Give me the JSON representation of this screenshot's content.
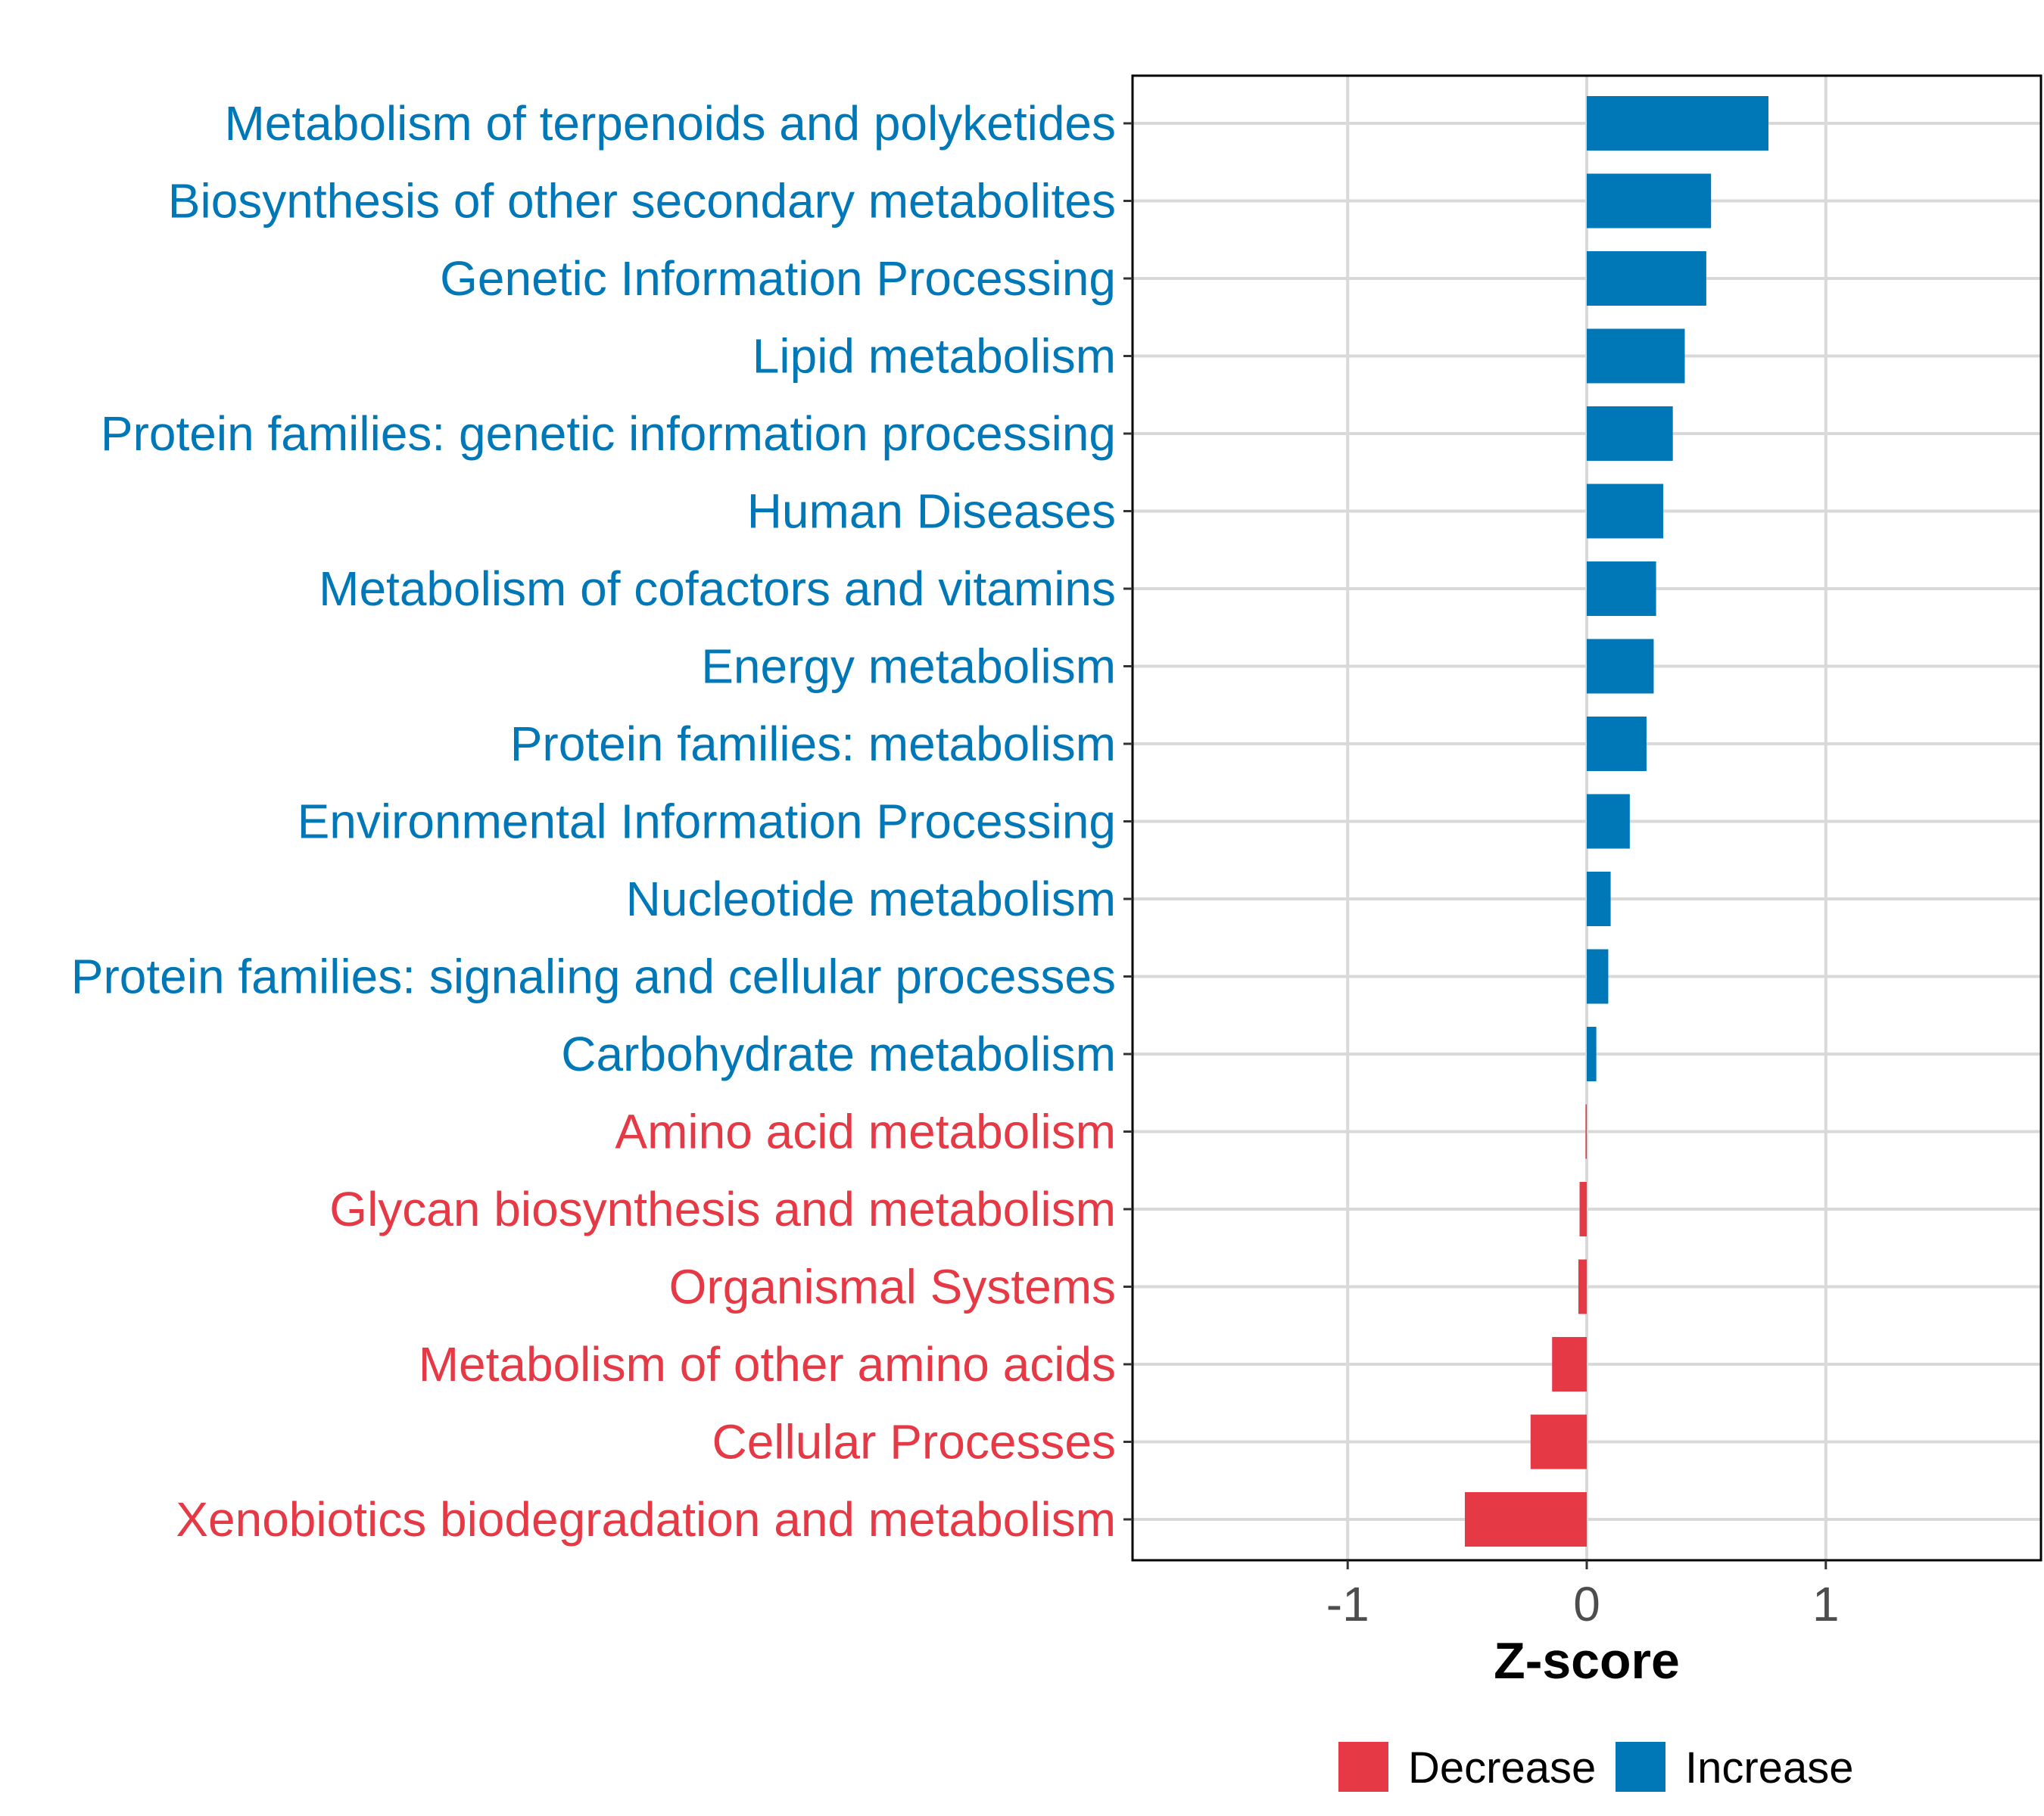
{
  "chart_data": {
    "type": "bar",
    "orientation": "horizontal",
    "xlabel": "Z-score",
    "xlim": [
      -1.9,
      1.9
    ],
    "xticks": [
      -1,
      0,
      1
    ],
    "xtick_labels": [
      "-1",
      "0",
      "1"
    ],
    "grid": true,
    "colors": {
      "Decrease": "#e63946",
      "Increase": "#0077b6"
    },
    "legend": {
      "position": "bottom",
      "entries": [
        {
          "label": "Decrease",
          "color": "#e63946"
        },
        {
          "label": "Increase",
          "color": "#0077b6"
        }
      ]
    },
    "categories": [
      "Metabolism of terpenoids and polyketides",
      "Biosynthesis of other secondary metabolites",
      "Genetic Information Processing",
      "Lipid metabolism",
      "Protein families: genetic information processing",
      "Human Diseases",
      "Metabolism of cofactors and vitamins",
      "Energy metabolism",
      "Protein families: metabolism",
      "Environmental Information Processing",
      "Nucleotide metabolism",
      "Protein families: signaling and cellular processes",
      "Carbohydrate metabolism",
      "Amino acid metabolism",
      "Glycan biosynthesis and metabolism",
      "Organismal Systems",
      "Metabolism of other amino acids",
      "Cellular Processes",
      "Xenobiotics biodegradation and metabolism"
    ],
    "values": [
      0.76,
      0.52,
      0.5,
      0.41,
      0.36,
      0.32,
      0.29,
      0.28,
      0.25,
      0.18,
      0.1,
      0.09,
      0.04,
      -0.005,
      -0.03,
      -0.035,
      -0.145,
      -0.235,
      -0.51
    ],
    "direction": [
      "Increase",
      "Increase",
      "Increase",
      "Increase",
      "Increase",
      "Increase",
      "Increase",
      "Increase",
      "Increase",
      "Increase",
      "Increase",
      "Increase",
      "Increase",
      "Decrease",
      "Decrease",
      "Decrease",
      "Decrease",
      "Decrease",
      "Decrease"
    ]
  }
}
